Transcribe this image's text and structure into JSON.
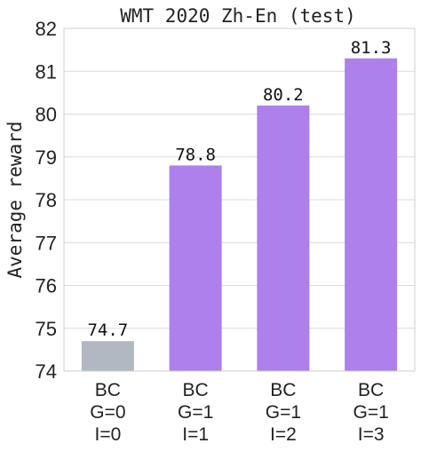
{
  "chart_data": {
    "type": "bar",
    "title": "WMT 2020 Zh-En (test)",
    "xlabel": "",
    "ylabel": "Average reward",
    "ylim": [
      74,
      82
    ],
    "yticks": [
      "74",
      "75",
      "76",
      "77",
      "78",
      "79",
      "80",
      "81",
      "82"
    ],
    "grid": true,
    "categories": [
      [
        "BC",
        "G=0",
        "I=0"
      ],
      [
        "BC",
        "G=1",
        "I=1"
      ],
      [
        "BC",
        "G=1",
        "I=2"
      ],
      [
        "BC",
        "G=1",
        "I=3"
      ]
    ],
    "values": [
      74.7,
      78.8,
      80.2,
      81.3
    ],
    "value_labels": [
      "74.7",
      "78.8",
      "80.2",
      "81.3"
    ],
    "colors": [
      "#b1b8c1",
      "#ad80eb",
      "#ad80eb",
      "#ad80eb"
    ]
  }
}
